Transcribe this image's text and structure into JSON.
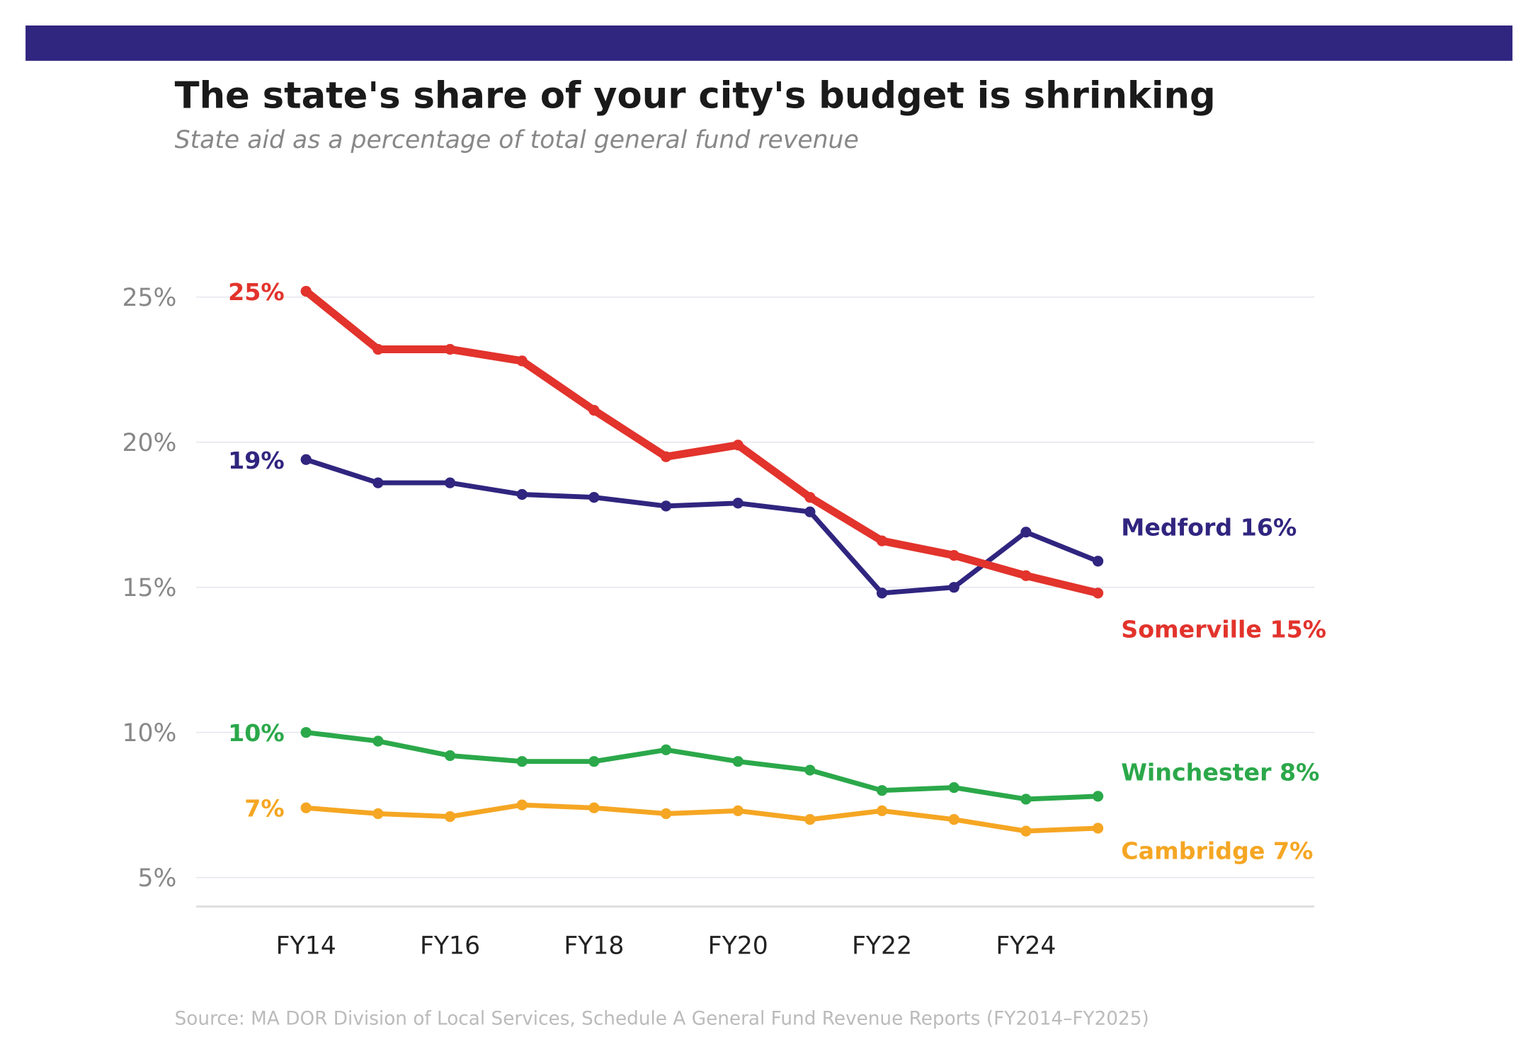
{
  "title": "The state's share of your city's budget is shrinking",
  "subtitle": "State aid as a percentage of total general fund revenue",
  "source": "Source: MA DOR Division of Local Services, Schedule A General Fund Revenue Reports (FY2014–FY2025)",
  "colors": {
    "banner": "#30257f",
    "grid": "#e6e6ef",
    "axis_text": "#888888",
    "source_text": "#bbbbbb"
  },
  "chart_data": {
    "type": "line",
    "title": "The state's share of your city's budget is shrinking",
    "subtitle": "State aid as a percentage of total general fund revenue",
    "xlabel": "",
    "ylabel": "",
    "x": [
      "FY14",
      "FY15",
      "FY16",
      "FY17",
      "FY18",
      "FY19",
      "FY20",
      "FY21",
      "FY22",
      "FY23",
      "FY24",
      "FY25"
    ],
    "x_tick_labels": [
      "FY14",
      "FY16",
      "FY18",
      "FY20",
      "FY22",
      "FY24"
    ],
    "y_ticks": [
      5,
      10,
      15,
      20,
      25
    ],
    "y_tick_labels": [
      "5%",
      "10%",
      "15%",
      "20%",
      "25%"
    ],
    "ylim": [
      4,
      27
    ],
    "grid": true,
    "legend": "direct labels at line ends",
    "series": [
      {
        "name": "Somerville",
        "color": "#e2332c",
        "start_label": "25%",
        "end_label": "Somerville 15%",
        "values": [
          25.2,
          23.2,
          23.2,
          22.8,
          21.1,
          19.5,
          19.9,
          18.1,
          16.6,
          16.1,
          15.4,
          14.8
        ]
      },
      {
        "name": "Medford",
        "color": "#30257f",
        "start_label": "19%",
        "end_label": "Medford 16%",
        "values": [
          19.4,
          18.6,
          18.6,
          18.2,
          18.1,
          17.8,
          17.9,
          17.6,
          14.8,
          15.0,
          16.9,
          15.9
        ]
      },
      {
        "name": "Winchester",
        "color": "#2ba84a",
        "start_label": "10%",
        "end_label": "Winchester 8%",
        "values": [
          10.0,
          9.7,
          9.2,
          9.0,
          9.0,
          9.4,
          9.0,
          8.7,
          8.0,
          8.1,
          7.7,
          7.8
        ]
      },
      {
        "name": "Cambridge",
        "color": "#f5a623",
        "start_label": "7%",
        "end_label": "Cambridge 7%",
        "values": [
          7.4,
          7.2,
          7.1,
          7.5,
          7.4,
          7.2,
          7.3,
          7.0,
          7.3,
          7.0,
          6.6,
          6.7
        ]
      }
    ]
  }
}
